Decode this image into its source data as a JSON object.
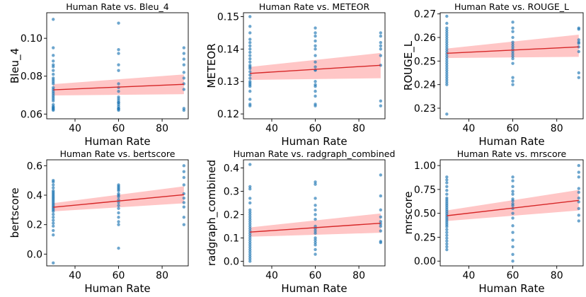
{
  "chart_data": [
    {
      "type": "scatter",
      "title": "Human Rate vs. Bleu_4",
      "xlabel": "Human Rate",
      "ylabel": "Bleu_4",
      "xlim": [
        27,
        92
      ],
      "ylim": [
        0.0575,
        0.1135
      ],
      "xticks": [
        40,
        60,
        80
      ],
      "xtick_labels": [
        "40",
        "60",
        "80"
      ],
      "yticks": [
        0.06,
        0.08,
        0.1
      ],
      "ytick_labels": [
        "0.06",
        "0.08",
        "0.10"
      ],
      "regression": {
        "x": [
          30,
          90
        ],
        "y": [
          0.0728,
          0.0757
        ],
        "ci_lower": [
          0.0698,
          0.0705
        ],
        "ci_upper": [
          0.0758,
          0.0809
        ]
      },
      "points": {
        "x": [
          30,
          30,
          30,
          30,
          30,
          30,
          30,
          30,
          30,
          30,
          30,
          30,
          30,
          30,
          30,
          30,
          30,
          30,
          30,
          30,
          30,
          30,
          30,
          30,
          30,
          30,
          60,
          60,
          60,
          60,
          60,
          60,
          60,
          60,
          60,
          60,
          60,
          60,
          60,
          60,
          60,
          60,
          60,
          60,
          60,
          90,
          90,
          90,
          90,
          90,
          90,
          90,
          90,
          90,
          90
        ],
        "y": [
          0.062,
          0.0625,
          0.063,
          0.0635,
          0.064,
          0.065,
          0.067,
          0.068,
          0.069,
          0.07,
          0.071,
          0.072,
          0.073,
          0.074,
          0.076,
          0.077,
          0.078,
          0.079,
          0.081,
          0.083,
          0.085,
          0.086,
          0.088,
          0.091,
          0.095,
          0.11,
          0.062,
          0.0625,
          0.063,
          0.064,
          0.065,
          0.066,
          0.067,
          0.068,
          0.072,
          0.074,
          0.083,
          0.086,
          0.092,
          0.094,
          0.108,
          0.063,
          0.066,
          0.069,
          0.076,
          0.062,
          0.063,
          0.073,
          0.076,
          0.079,
          0.082,
          0.086,
          0.089,
          0.092,
          0.095
        ]
      }
    },
    {
      "type": "scatter",
      "title": "Human Rate vs. METEOR",
      "xlabel": "Human Rate",
      "ylabel": "METEOR",
      "xlim": [
        27,
        92
      ],
      "ylim": [
        0.1185,
        0.1512
      ],
      "xticks": [
        40,
        60,
        80
      ],
      "xtick_labels": [
        "40",
        "60",
        "80"
      ],
      "yticks": [
        0.12,
        0.13,
        0.14,
        0.15
      ],
      "ytick_labels": [
        "0.12",
        "0.13",
        "0.14",
        "0.15"
      ],
      "regression": {
        "x": [
          30,
          90
        ],
        "y": [
          0.1325,
          0.135
        ],
        "ci_lower": [
          0.1305,
          0.131
        ],
        "ci_upper": [
          0.1345,
          0.1388
        ]
      },
      "points": {
        "x": [
          30,
          30,
          30,
          30,
          30,
          30,
          30,
          30,
          30,
          30,
          30,
          30,
          30,
          30,
          30,
          30,
          30,
          30,
          30,
          30,
          30,
          30,
          30,
          30,
          30,
          60,
          60,
          60,
          60,
          60,
          60,
          60,
          60,
          60,
          60,
          60,
          60,
          60,
          60,
          60,
          60,
          60,
          60,
          90,
          90,
          90,
          90,
          90,
          90,
          90,
          90,
          90
        ],
        "y": [
          0.1225,
          0.123,
          0.1245,
          0.127,
          0.1285,
          0.129,
          0.1295,
          0.13,
          0.131,
          0.132,
          0.133,
          0.134,
          0.1345,
          0.135,
          0.136,
          0.137,
          0.138,
          0.139,
          0.14,
          0.141,
          0.142,
          0.143,
          0.145,
          0.147,
          0.15,
          0.1225,
          0.123,
          0.1255,
          0.127,
          0.1285,
          0.129,
          0.13,
          0.1335,
          0.1345,
          0.138,
          0.1425,
          0.144,
          0.145,
          0.1465,
          0.1335,
          0.136,
          0.14,
          0.141,
          0.1225,
          0.124,
          0.135,
          0.138,
          0.14,
          0.141,
          0.142,
          0.144,
          0.145
        ]
      }
    },
    {
      "type": "scatter",
      "title": "Human Rate vs. ROUGE_L",
      "xlabel": "Human Rate",
      "ylabel": "ROUGE_L",
      "xlim": [
        27,
        92
      ],
      "ylim": [
        0.2255,
        0.2705
      ],
      "xticks": [
        40,
        60,
        80
      ],
      "xtick_labels": [
        "40",
        "60",
        "80"
      ],
      "yticks": [
        0.23,
        0.24,
        0.25,
        0.26,
        0.27
      ],
      "ytick_labels": [
        "0.23",
        "0.24",
        "0.25",
        "0.26",
        "0.27"
      ],
      "regression": {
        "x": [
          30,
          90
        ],
        "y": [
          0.2533,
          0.256
        ],
        "ci_lower": [
          0.2513,
          0.2518
        ],
        "ci_upper": [
          0.2553,
          0.2612
        ]
      },
      "points": {
        "x": [
          30,
          30,
          30,
          30,
          30,
          30,
          30,
          30,
          30,
          30,
          30,
          30,
          30,
          30,
          30,
          30,
          30,
          30,
          30,
          30,
          30,
          30,
          30,
          30,
          30,
          30,
          30,
          30,
          60,
          60,
          60,
          60,
          60,
          60,
          60,
          60,
          60,
          60,
          60,
          60,
          60,
          60,
          60,
          60,
          90,
          90,
          90,
          90,
          90,
          90,
          90,
          90,
          90
        ],
        "y": [
          0.2275,
          0.24,
          0.241,
          0.242,
          0.243,
          0.244,
          0.245,
          0.246,
          0.247,
          0.248,
          0.249,
          0.25,
          0.251,
          0.252,
          0.253,
          0.254,
          0.255,
          0.256,
          0.257,
          0.258,
          0.259,
          0.26,
          0.261,
          0.262,
          0.263,
          0.264,
          0.266,
          0.269,
          0.24,
          0.2415,
          0.243,
          0.249,
          0.251,
          0.252,
          0.253,
          0.254,
          0.255,
          0.256,
          0.257,
          0.258,
          0.26,
          0.2625,
          0.264,
          0.2665,
          0.243,
          0.245,
          0.254,
          0.256,
          0.2575,
          0.258,
          0.259,
          0.2635,
          0.264
        ]
      }
    },
    {
      "type": "scatter",
      "title": "Human Rate vs. bertscore",
      "xlabel": "Human Rate",
      "ylabel": "bertscore",
      "xlim": [
        27,
        92
      ],
      "ylim": [
        -0.08,
        0.64
      ],
      "xticks": [
        40,
        60,
        80
      ],
      "xtick_labels": [
        "40",
        "60",
        "80"
      ],
      "yticks": [
        0.0,
        0.2,
        0.4,
        0.6
      ],
      "ytick_labels": [
        "0.0",
        "0.2",
        "0.4",
        "0.6"
      ],
      "regression": {
        "x": [
          30,
          90
        ],
        "y": [
          0.318,
          0.403
        ],
        "ci_lower": [
          0.29,
          0.345
        ],
        "ci_upper": [
          0.346,
          0.46
        ]
      },
      "points": {
        "x": [
          30,
          30,
          30,
          30,
          30,
          30,
          30,
          30,
          30,
          30,
          30,
          30,
          30,
          30,
          30,
          30,
          30,
          30,
          30,
          30,
          30,
          30,
          30,
          30,
          30,
          30,
          30,
          60,
          60,
          60,
          60,
          60,
          60,
          60,
          60,
          60,
          60,
          60,
          60,
          60,
          60,
          60,
          60,
          60,
          90,
          90,
          90,
          90,
          90,
          90,
          90,
          90,
          90,
          90
        ],
        "y": [
          -0.06,
          0.13,
          0.16,
          0.19,
          0.21,
          0.23,
          0.25,
          0.27,
          0.29,
          0.3,
          0.31,
          0.32,
          0.33,
          0.34,
          0.35,
          0.36,
          0.37,
          0.38,
          0.39,
          0.4,
          0.41,
          0.42,
          0.43,
          0.45,
          0.47,
          0.49,
          0.5,
          0.04,
          0.2,
          0.22,
          0.25,
          0.28,
          0.31,
          0.33,
          0.35,
          0.37,
          0.39,
          0.4,
          0.41,
          0.43,
          0.44,
          0.45,
          0.46,
          0.47,
          0.2,
          0.25,
          0.32,
          0.35,
          0.38,
          0.41,
          0.47,
          0.52,
          0.56,
          0.6
        ]
      }
    },
    {
      "type": "scatter",
      "title": "Human Rate vs. radgraph_combined",
      "xlabel": "Human Rate",
      "ylabel": "radgraph_combined",
      "xlim": [
        27,
        92
      ],
      "ylim": [
        -0.02,
        0.435
      ],
      "xticks": [
        40,
        60,
        80
      ],
      "xtick_labels": [
        "40",
        "60",
        "80"
      ],
      "yticks": [
        0.0,
        0.1,
        0.2,
        0.3,
        0.4
      ],
      "ytick_labels": [
        "0.0",
        "0.1",
        "0.2",
        "0.3",
        "0.4"
      ],
      "regression": {
        "x": [
          30,
          90
        ],
        "y": [
          0.125,
          0.163
        ],
        "ci_lower": [
          0.105,
          0.122
        ],
        "ci_upper": [
          0.145,
          0.205
        ]
      },
      "points": {
        "x": [
          30,
          30,
          30,
          30,
          30,
          30,
          30,
          30,
          30,
          30,
          30,
          30,
          30,
          30,
          30,
          30,
          30,
          30,
          30,
          30,
          30,
          30,
          30,
          30,
          30,
          30,
          30,
          30,
          60,
          60,
          60,
          60,
          60,
          60,
          60,
          60,
          60,
          60,
          60,
          60,
          60,
          60,
          60,
          60,
          60,
          90,
          90,
          90,
          90,
          90,
          90,
          90,
          90,
          90,
          90
        ],
        "y": [
          0.0,
          0.01,
          0.02,
          0.03,
          0.04,
          0.05,
          0.06,
          0.07,
          0.08,
          0.09,
          0.1,
          0.11,
          0.12,
          0.13,
          0.14,
          0.15,
          0.16,
          0.17,
          0.18,
          0.19,
          0.2,
          0.21,
          0.22,
          0.25,
          0.27,
          0.31,
          0.32,
          0.415,
          0.03,
          0.05,
          0.07,
          0.08,
          0.09,
          0.1,
          0.12,
          0.13,
          0.14,
          0.15,
          0.18,
          0.2,
          0.22,
          0.24,
          0.27,
          0.33,
          0.34,
          0.08,
          0.085,
          0.13,
          0.15,
          0.16,
          0.17,
          0.19,
          0.22,
          0.28,
          0.37
        ]
      }
    },
    {
      "type": "scatter",
      "title": "Human Rate vs. mrscore",
      "xlabel": "Human Rate",
      "ylabel": "mrscore",
      "xlim": [
        27,
        92
      ],
      "ylim": [
        -0.05,
        1.06
      ],
      "xticks": [
        40,
        60,
        80
      ],
      "xtick_labels": [
        "40",
        "60",
        "80"
      ],
      "yticks": [
        0.0,
        0.25,
        0.5,
        0.75,
        1.0
      ],
      "ytick_labels": [
        "0.00",
        "0.25",
        "0.50",
        "0.75",
        "1.00"
      ],
      "regression": {
        "x": [
          30,
          90
        ],
        "y": [
          0.475,
          0.635
        ],
        "ci_lower": [
          0.42,
          0.53
        ],
        "ci_upper": [
          0.53,
          0.745
        ]
      },
      "points": {
        "x": [
          30,
          30,
          30,
          30,
          30,
          30,
          30,
          30,
          30,
          30,
          30,
          30,
          30,
          30,
          30,
          30,
          30,
          30,
          30,
          30,
          30,
          30,
          30,
          30,
          30,
          30,
          30,
          30,
          30,
          30,
          60,
          60,
          60,
          60,
          60,
          60,
          60,
          60,
          60,
          60,
          60,
          60,
          60,
          60,
          60,
          60,
          60,
          60,
          90,
          90,
          90,
          90,
          90,
          90,
          90,
          90,
          90,
          90
        ],
        "y": [
          0.12,
          0.15,
          0.18,
          0.21,
          0.24,
          0.27,
          0.3,
          0.33,
          0.36,
          0.38,
          0.4,
          0.42,
          0.44,
          0.46,
          0.48,
          0.5,
          0.52,
          0.54,
          0.56,
          0.58,
          0.6,
          0.62,
          0.64,
          0.66,
          0.7,
          0.74,
          0.78,
          0.82,
          0.85,
          0.88,
          0.0,
          0.07,
          0.15,
          0.22,
          0.3,
          0.37,
          0.45,
          0.5,
          0.55,
          0.58,
          0.6,
          0.63,
          0.65,
          0.7,
          0.73,
          0.78,
          0.84,
          0.88,
          0.42,
          0.48,
          0.55,
          0.62,
          0.66,
          0.72,
          0.76,
          0.88,
          0.93,
          1.0
        ]
      }
    }
  ],
  "colors": {
    "point": "#1f77b4",
    "line": "#d62728",
    "band": "#ffb3b3"
  }
}
